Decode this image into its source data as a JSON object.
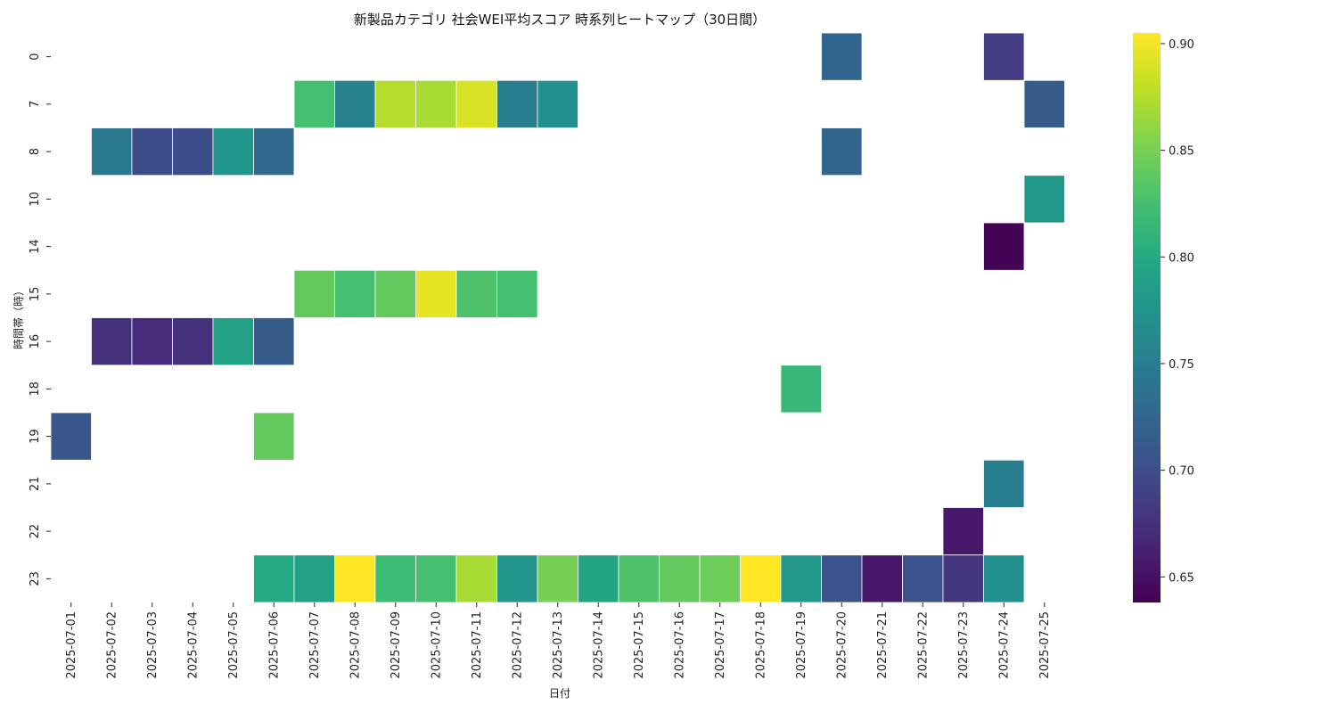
{
  "chart_data": {
    "type": "heatmap",
    "title": "新製品カテゴリ 社会WEI平均スコア 時系列ヒートマップ（30日間）",
    "xlabel": "日付",
    "ylabel": "時間帯（時）",
    "x": [
      "2025-07-01",
      "2025-07-02",
      "2025-07-03",
      "2025-07-04",
      "2025-07-05",
      "2025-07-06",
      "2025-07-07",
      "2025-07-08",
      "2025-07-09",
      "2025-07-10",
      "2025-07-11",
      "2025-07-12",
      "2025-07-13",
      "2025-07-14",
      "2025-07-15",
      "2025-07-16",
      "2025-07-17",
      "2025-07-18",
      "2025-07-19",
      "2025-07-20",
      "2025-07-21",
      "2025-07-22",
      "2025-07-23",
      "2025-07-24",
      "2025-07-25"
    ],
    "y": [
      "0",
      "7",
      "8",
      "10",
      "14",
      "15",
      "16",
      "18",
      "19",
      "21",
      "22",
      "23"
    ],
    "values": [
      [
        null,
        null,
        null,
        null,
        null,
        null,
        null,
        null,
        null,
        null,
        null,
        null,
        null,
        null,
        null,
        null,
        null,
        null,
        null,
        0.725,
        null,
        null,
        null,
        0.685,
        null
      ],
      [
        null,
        null,
        null,
        null,
        null,
        null,
        0.825,
        0.755,
        0.875,
        0.87,
        0.89,
        0.75,
        0.77,
        null,
        null,
        null,
        null,
        null,
        null,
        null,
        null,
        null,
        null,
        null,
        0.715
      ],
      [
        null,
        0.745,
        0.7,
        0.7,
        0.775,
        0.73,
        null,
        null,
        null,
        null,
        null,
        null,
        null,
        null,
        null,
        null,
        null,
        null,
        null,
        0.725,
        null,
        null,
        null,
        null,
        null
      ],
      [
        null,
        null,
        null,
        null,
        null,
        null,
        null,
        null,
        null,
        null,
        null,
        null,
        null,
        null,
        null,
        null,
        null,
        null,
        null,
        null,
        null,
        null,
        null,
        null,
        0.78
      ],
      [
        null,
        null,
        null,
        null,
        null,
        null,
        null,
        null,
        null,
        null,
        null,
        null,
        null,
        null,
        null,
        null,
        null,
        null,
        null,
        null,
        null,
        null,
        null,
        0.64,
        null
      ],
      [
        null,
        null,
        null,
        null,
        null,
        null,
        0.84,
        0.825,
        0.84,
        0.895,
        0.83,
        0.825,
        null,
        null,
        null,
        null,
        null,
        null,
        null,
        null,
        null,
        null,
        null,
        null,
        null
      ],
      [
        null,
        0.675,
        0.67,
        0.675,
        0.79,
        0.715,
        null,
        null,
        null,
        null,
        null,
        null,
        null,
        null,
        null,
        null,
        null,
        null,
        null,
        null,
        null,
        null,
        null,
        null,
        null
      ],
      [
        null,
        null,
        null,
        null,
        null,
        null,
        null,
        null,
        null,
        null,
        null,
        null,
        null,
        null,
        null,
        null,
        null,
        null,
        0.815,
        null,
        null,
        null,
        null,
        null,
        null
      ],
      [
        0.71,
        null,
        null,
        null,
        null,
        0.84,
        null,
        null,
        null,
        null,
        null,
        null,
        null,
        null,
        null,
        null,
        null,
        null,
        null,
        null,
        null,
        null,
        null,
        null,
        null
      ],
      [
        null,
        null,
        null,
        null,
        null,
        null,
        null,
        null,
        null,
        null,
        null,
        null,
        null,
        null,
        null,
        null,
        null,
        null,
        null,
        null,
        null,
        null,
        null,
        0.75,
        null
      ],
      [
        null,
        null,
        null,
        null,
        null,
        null,
        null,
        null,
        null,
        null,
        null,
        null,
        null,
        null,
        null,
        null,
        null,
        null,
        null,
        null,
        null,
        null,
        0.655,
        null,
        null
      ],
      [
        null,
        null,
        null,
        null,
        null,
        0.8,
        0.79,
        0.905,
        0.82,
        0.825,
        0.87,
        0.775,
        0.85,
        0.795,
        0.83,
        0.84,
        0.845,
        0.905,
        0.78,
        0.705,
        0.655,
        0.705,
        0.68,
        0.77,
        null
      ]
    ],
    "colormap": "viridis",
    "vmin": 0.638,
    "vmax": 0.905,
    "colorbar_ticks": [
      "0.65",
      "0.70",
      "0.75",
      "0.80",
      "0.85",
      "0.90"
    ],
    "grid": false
  }
}
